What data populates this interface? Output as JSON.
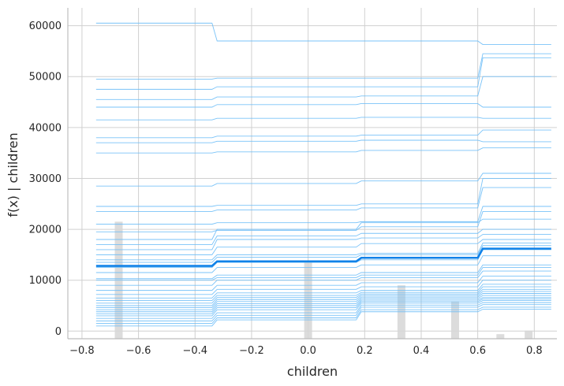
{
  "chart_data": {
    "type": "line",
    "title": "",
    "xlabel": "children",
    "ylabel": "f(x) | children",
    "xlim": [
      -0.85,
      0.88
    ],
    "ylim": [
      -1500,
      63500
    ],
    "x_ticks": [
      -0.8,
      -0.6,
      -0.4,
      -0.2,
      0.0,
      0.2,
      0.4,
      0.6,
      0.8
    ],
    "x_tick_labels": [
      "−0.8",
      "−0.6",
      "−0.4",
      "−0.2",
      "0.0",
      "0.2",
      "0.4",
      "0.6",
      "0.8"
    ],
    "y_ticks": [
      0,
      10000,
      20000,
      30000,
      40000,
      50000,
      60000
    ],
    "y_tick_labels": [
      "0",
      "10000",
      "20000",
      "30000",
      "40000",
      "50000",
      "60000"
    ],
    "grid": true,
    "breakpoints": [
      -0.75,
      -0.34,
      0.17,
      0.6,
      0.86
    ],
    "ice_series": [
      [
        60500,
        57000,
        57000,
        56300,
        56300
      ],
      [
        49500,
        49700,
        49700,
        54500,
        54500
      ],
      [
        47500,
        48000,
        48000,
        53700,
        53700
      ],
      [
        45500,
        46000,
        46200,
        50000,
        49700
      ],
      [
        44000,
        44500,
        44700,
        44000,
        43800
      ],
      [
        41500,
        41800,
        42000,
        41800,
        41600
      ],
      [
        38000,
        38300,
        38500,
        39500,
        39000
      ],
      [
        37000,
        37300,
        37500,
        37200,
        36800
      ],
      [
        35000,
        35200,
        35500,
        36000,
        35600
      ],
      [
        28500,
        29000,
        29500,
        31000,
        30800
      ],
      [
        24500,
        24700,
        25000,
        30000,
        29800
      ],
      [
        23500,
        23800,
        24200,
        28200,
        28000
      ],
      [
        21000,
        21300,
        21500,
        24500,
        24200
      ],
      [
        19500,
        19800,
        20500,
        23500,
        23300
      ],
      [
        18000,
        20000,
        21300,
        22000,
        21800
      ],
      [
        17000,
        18700,
        19200,
        20000,
        19800
      ],
      [
        16000,
        18000,
        18300,
        19000,
        18800
      ],
      [
        15000,
        16500,
        17200,
        18000,
        17800
      ],
      [
        14000,
        15000,
        15300,
        17300,
        17000
      ],
      [
        13500,
        14500,
        15000,
        16800,
        16500
      ],
      [
        12500,
        13500,
        14000,
        16000,
        15800
      ],
      [
        11500,
        12500,
        13000,
        14800,
        14500
      ],
      [
        10300,
        11000,
        11500,
        13000,
        12800
      ],
      [
        10000,
        10500,
        11000,
        12500,
        12300
      ],
      [
        9000,
        10000,
        10500,
        11800,
        11500
      ],
      [
        8000,
        9000,
        9500,
        10800,
        10500
      ],
      [
        7200,
        8200,
        8700,
        10000,
        9800
      ],
      [
        6500,
        7500,
        8000,
        9200,
        9000
      ],
      [
        6000,
        7000,
        7600,
        8700,
        8500
      ],
      [
        5500,
        6600,
        7300,
        8200,
        8000
      ],
      [
        5000,
        6200,
        7000,
        7800,
        7600
      ],
      [
        4600,
        5800,
        6700,
        7400,
        7200
      ],
      [
        4200,
        5400,
        6400,
        7000,
        6800
      ],
      [
        3800,
        5000,
        6100,
        6600,
        6400
      ],
      [
        3400,
        4600,
        5800,
        6300,
        6100
      ],
      [
        3000,
        4200,
        5500,
        6000,
        5800
      ],
      [
        2500,
        3600,
        5100,
        5600,
        5400
      ],
      [
        2000,
        3100,
        4700,
        5200,
        5000
      ],
      [
        1500,
        2600,
        4200,
        4700,
        4500
      ],
      [
        1000,
        2200,
        3800,
        4300,
        4200
      ]
    ],
    "pdp_series": [
      12800,
      13700,
      14400,
      16200,
      16000
    ],
    "histogram": [
      {
        "x": -0.67,
        "value": 23000
      },
      {
        "x": 0.0,
        "value": 15000
      },
      {
        "x": 0.33,
        "value": 10500
      },
      {
        "x": 0.52,
        "value": 7300
      },
      {
        "x": 0.68,
        "value": 900
      },
      {
        "x": 0.78,
        "value": 1600
      }
    ],
    "colors": {
      "ice_line": "#6cbcf7",
      "pdp_line": "#1082e8",
      "histogram": "#d6d6d6",
      "grid": "#d0d0d0",
      "axis": "#bdbdbd",
      "text": "#262626"
    }
  }
}
